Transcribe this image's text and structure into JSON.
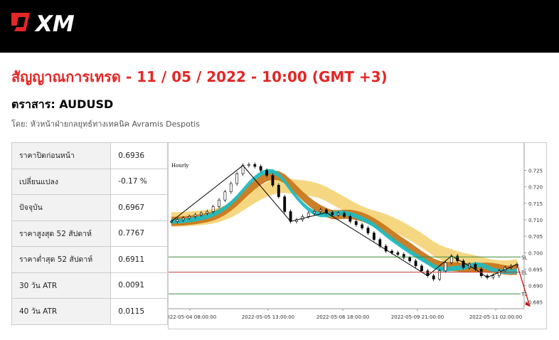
{
  "brand": {
    "name": "XM",
    "colors": {
      "accent": "#e32726",
      "header_bg": "#000000"
    }
  },
  "signal": {
    "title": "สัญญาณการเทรด - 11 / 05 / 2022 - 10:00 (GMT +3)",
    "instrument": "ตราสาร: AUDUSD",
    "author": "โดย: หัวหน้าฝ่ายกลยุทธ์ทางเทคนิค Avramis Despotis"
  },
  "stats": [
    {
      "label": "ราคาปิดก่อนหน้า",
      "value": "0.6936"
    },
    {
      "label": "เปลี่ยนแปลง",
      "value": "-0.17 %"
    },
    {
      "label": "ปัจจุบัน",
      "value": "0.6967"
    },
    {
      "label": "ราคาสูงสุด 52 สัปดาห์",
      "value": "0.7767"
    },
    {
      "label": "ราคาต่ำสุด 52 สัปดาห์",
      "value": "0.6911"
    },
    {
      "label": "30 วัน ATR",
      "value": "0.0091"
    },
    {
      "label": "40 วัน ATR",
      "value": "0.0115"
    }
  ],
  "chart_data": {
    "type": "line",
    "timeframe_label": "Hourly",
    "x_tick_labels": [
      "2022-05-04 08:00:00",
      "2022-05-05 13:00:00",
      "2022-05-06 18:00:00",
      "2022-05-09 21:00:00",
      "2022-05-11 02:00:00"
    ],
    "y_tick_labels": [
      "0.725",
      "0.720",
      "0.715",
      "0.710",
      "0.705",
      "0.700",
      "0.695",
      "0.690",
      "0.685"
    ],
    "ylim": [
      0.683,
      0.729
    ],
    "series": [
      {
        "values": [
          0.7095,
          0.71,
          0.7105,
          0.711,
          0.7115,
          0.712,
          0.7125,
          0.714,
          0.716,
          0.7185,
          0.721,
          0.724,
          0.7265,
          0.7268,
          0.7262,
          0.725,
          0.7235,
          0.7205,
          0.717,
          0.7125,
          0.7095,
          0.71,
          0.711,
          0.712,
          0.7125,
          0.713,
          0.7122,
          0.7115,
          0.712,
          0.711,
          0.7095,
          0.7085,
          0.7075,
          0.706,
          0.704,
          0.702,
          0.7005,
          0.7,
          0.6995,
          0.6985,
          0.6975,
          0.696,
          0.6945,
          0.693,
          0.692,
          0.6945,
          0.697,
          0.699,
          0.6975,
          0.6955,
          0.6965,
          0.695,
          0.693,
          0.6925,
          0.693,
          0.6945,
          0.6955,
          0.696,
          0.6965
        ]
      }
    ],
    "levels": [
      {
        "name": "SL",
        "value": 0.6987,
        "color": "#3c8c3c"
      },
      {
        "name": "EL",
        "value": 0.6941,
        "color": "#c83c3c"
      },
      {
        "name": "T1",
        "value": 0.6875,
        "color": "#3c8c3c"
      }
    ],
    "colors": {
      "ribbon_outer": "#f5d57a",
      "ribbon_mid": "#c8781e",
      "ribbon_inner": "#1fbcc0",
      "arrow": "#cc0000"
    }
  }
}
